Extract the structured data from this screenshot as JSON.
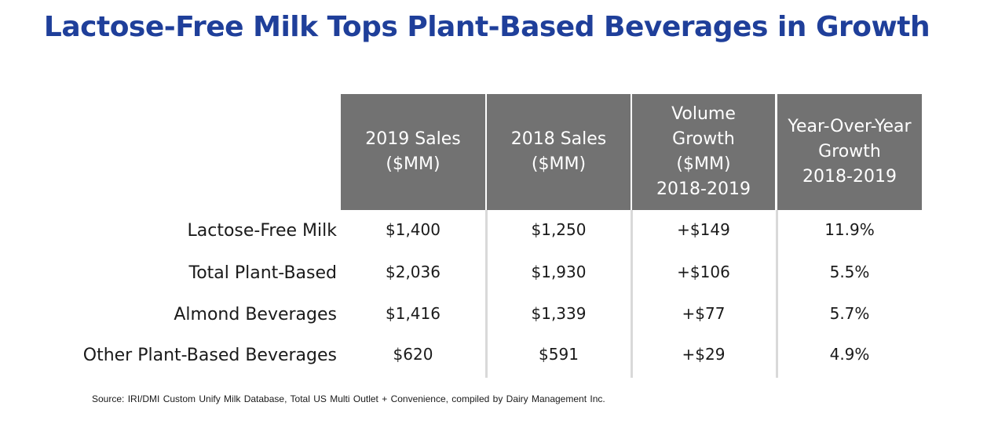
{
  "title": "Lactose-Free Milk Tops Plant-Based Beverages in Growth",
  "source": "Source: IRI/DMI  Custom Unify Milk Database, Total US Multi Outlet + Convenience,  compiled by Dairy Management Inc.",
  "colors": {
    "title": "#1f3f9a",
    "header_bg": "#727272",
    "header_text": "#ffffff",
    "divider": "#d9d9d9"
  },
  "chart_data": {
    "type": "table",
    "title": "Lactose-Free Milk Tops Plant-Based Beverages in Growth",
    "columns": [
      "2019 Sales\n($MM)",
      "2018 Sales\n($MM)",
      "Volume\nGrowth\n($MM)\n2018-2019",
      "Year-Over-Year\nGrowth\n2018-2019"
    ],
    "rows": [
      {
        "label": "Lactose-Free Milk",
        "values": [
          "$1,400",
          "$1,250",
          "+$149",
          "11.9%"
        ]
      },
      {
        "label": "Total Plant-Based",
        "values": [
          "$2,036",
          "$1,930",
          "+$106",
          "5.5%"
        ]
      },
      {
        "label": "Almond Beverages",
        "values": [
          "$1,416",
          "$1,339",
          "+$77",
          "5.7%"
        ]
      },
      {
        "label": "Other Plant-Based Beverages",
        "values": [
          "$620",
          "$591",
          "+$29",
          "4.9%"
        ]
      }
    ]
  }
}
